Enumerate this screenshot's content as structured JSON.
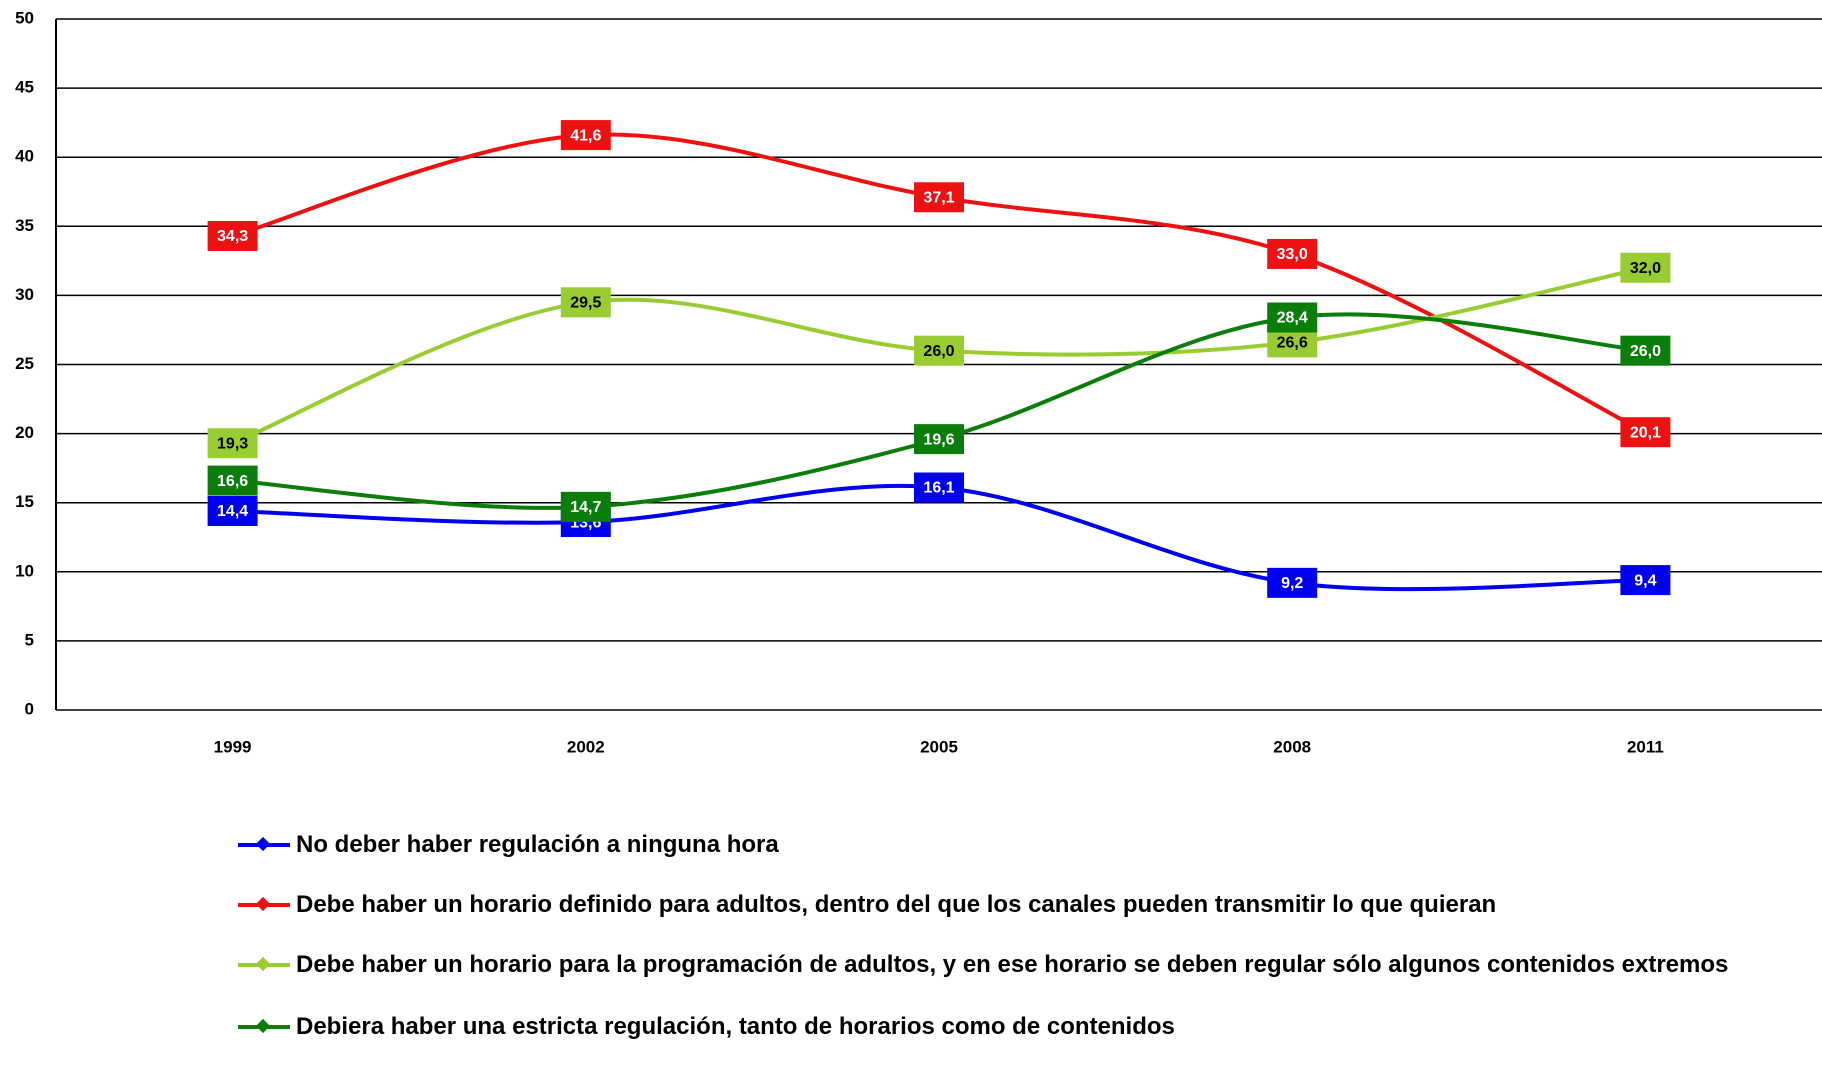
{
  "chart_data": {
    "type": "line",
    "categories": [
      "1999",
      "2002",
      "2005",
      "2008",
      "2011"
    ],
    "ylim": [
      0,
      50
    ],
    "yticks": [
      0,
      5,
      10,
      15,
      20,
      25,
      30,
      35,
      40,
      45,
      50
    ],
    "grid": true,
    "legend": "bottom",
    "series": [
      {
        "name": "No deber haber regulación a ninguna hora",
        "color": "#0000ee",
        "values": [
          14.4,
          13.6,
          16.1,
          9.2,
          9.4
        ],
        "value_labels": [
          "14,4",
          "13,6",
          "16,1",
          "9,2",
          "9,4"
        ]
      },
      {
        "name": "Debe haber un horario definido para adultos, dentro del que los canales pueden transmitir lo que quieran",
        "color": "#ee1111",
        "values": [
          34.3,
          41.6,
          37.1,
          33.0,
          20.1
        ],
        "value_labels": [
          "34,3",
          "41,6",
          "37,1",
          "33,0",
          "20,1"
        ]
      },
      {
        "name": "Debe haber un horario para la programación de adultos, y en ese horario se deben regular sólo algunos contenidos extremos",
        "color": "#99cc33",
        "values": [
          19.3,
          29.5,
          26.0,
          26.6,
          32.0
        ],
        "value_labels": [
          "19,3",
          "29,5",
          "26,0",
          "26,6",
          "32,0"
        ]
      },
      {
        "name": "Debiera haber una estricta regulación, tanto de horarios como de contenidos",
        "color": "#0a7d0a",
        "values": [
          16.6,
          14.7,
          19.6,
          28.4,
          26.0
        ],
        "value_labels": [
          "16,6",
          "14,7",
          "19,6",
          "28,4",
          "26,0"
        ]
      }
    ]
  }
}
